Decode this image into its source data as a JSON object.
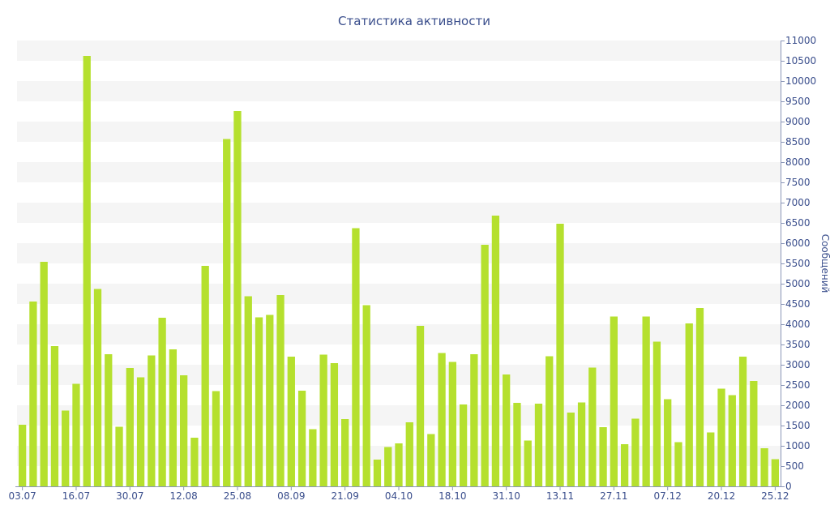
{
  "chart_data": {
    "type": "bar",
    "title": "Статистика активности",
    "ylabel": "Сообщений",
    "xlabel": "",
    "ylim": [
      0,
      11000
    ],
    "y_ticks": [
      0,
      500,
      1000,
      1500,
      2000,
      2500,
      3000,
      3500,
      4000,
      4500,
      5000,
      5500,
      6000,
      6500,
      7000,
      7500,
      8000,
      8500,
      9000,
      9500,
      10000,
      10500,
      11000
    ],
    "x_tick_labels": [
      {
        "label": "03.07",
        "index": 0
      },
      {
        "label": "16.07",
        "index": 5
      },
      {
        "label": "30.07",
        "index": 10
      },
      {
        "label": "12.08",
        "index": 15
      },
      {
        "label": "25.08",
        "index": 20
      },
      {
        "label": "08.09",
        "index": 25
      },
      {
        "label": "21.09",
        "index": 30
      },
      {
        "label": "04.10",
        "index": 35
      },
      {
        "label": "18.10",
        "index": 40
      },
      {
        "label": "31.10",
        "index": 45
      },
      {
        "label": "13.11",
        "index": 50
      },
      {
        "label": "27.11",
        "index": 55
      },
      {
        "label": "07.12",
        "index": 60
      },
      {
        "label": "20.12",
        "index": 65
      },
      {
        "label": "25.12",
        "index": 70
      }
    ],
    "values": [
      1520,
      4560,
      5540,
      3460,
      1870,
      2530,
      10620,
      4870,
      3260,
      1470,
      2920,
      2690,
      3230,
      4160,
      3380,
      2740,
      1200,
      5440,
      2350,
      8570,
      9260,
      4690,
      4170,
      4230,
      4720,
      3200,
      2360,
      1410,
      3250,
      3040,
      1660,
      6370,
      4470,
      660,
      970,
      1060,
      1580,
      3960,
      1290,
      3290,
      3070,
      2020,
      3260,
      5960,
      6680,
      2760,
      2060,
      1130,
      2040,
      3210,
      6480,
      1820,
      2070,
      2930,
      1460,
      4190,
      1040,
      1670,
      4190,
      3570,
      2150,
      1090,
      4020,
      4400,
      1330,
      2410,
      2250,
      3200,
      2600,
      940,
      670
    ],
    "colors": {
      "bar": "#b5e02e",
      "band": "#f5f5f5",
      "axis_text": "#3a4e8c",
      "title": "#3a4e8c"
    },
    "grid": "horizontal alternating bands",
    "y_axis_side": "right",
    "legend": "none"
  }
}
